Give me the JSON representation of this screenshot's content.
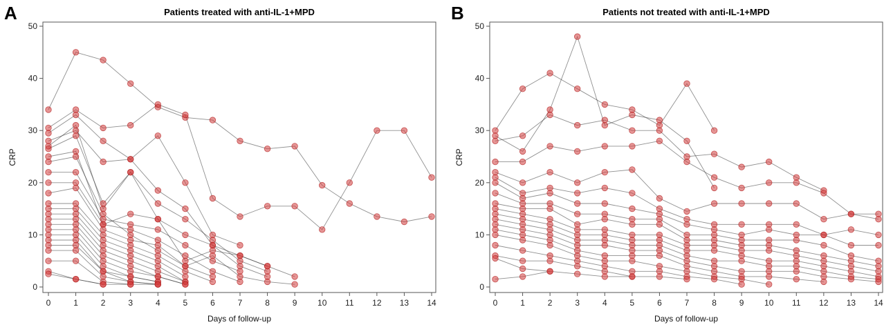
{
  "chart_data": [
    {
      "type": "line",
      "panel": "A",
      "title": "Patients treated with anti-IL-1+MPD",
      "xlabel": "Days of follow-up",
      "ylabel": "CRP",
      "xlim": [
        0,
        14
      ],
      "ylim": [
        0,
        50
      ],
      "x_ticks": [
        0,
        1,
        2,
        3,
        4,
        5,
        6,
        7,
        8,
        9,
        10,
        11,
        12,
        13,
        14
      ],
      "y_ticks": [
        0,
        10,
        20,
        30,
        40,
        50
      ],
      "grid": false,
      "series": [
        {
          "x": [
            0,
            1,
            2,
            3,
            4,
            5,
            6,
            7,
            8,
            9,
            10,
            11,
            12,
            13,
            14
          ],
          "y": [
            34,
            45,
            43.5,
            39,
            34.5,
            32.5,
            32,
            28,
            26.5,
            27,
            19.5,
            16,
            13.5,
            12.5,
            13.5
          ]
        },
        {
          "x": [
            0,
            1,
            2,
            3,
            4,
            5,
            6,
            7,
            8,
            9,
            10,
            11,
            12,
            13,
            14
          ],
          "y": [
            30.5,
            34,
            30.5,
            31,
            35,
            33,
            17,
            13.5,
            15.5,
            15.5,
            11,
            20,
            30,
            30,
            21
          ]
        },
        {
          "x": [
            0,
            1,
            2,
            3,
            4,
            5,
            6,
            7
          ],
          "y": [
            29.5,
            33,
            28,
            24.5,
            29,
            20,
            10,
            8
          ]
        },
        {
          "x": [
            0,
            1,
            2,
            3,
            4,
            5,
            6,
            7,
            8
          ],
          "y": [
            28,
            30,
            24,
            24.5,
            18.5,
            15,
            8,
            6,
            4
          ]
        },
        {
          "x": [
            0,
            1,
            2,
            3,
            4,
            5,
            6,
            7,
            8
          ],
          "y": [
            27,
            31,
            15,
            22,
            16,
            13,
            9,
            5,
            3
          ]
        },
        {
          "x": [
            0,
            1,
            2,
            3,
            4,
            5,
            6,
            7,
            8
          ],
          "y": [
            26.5,
            29,
            16,
            22,
            13,
            10,
            8,
            4,
            2
          ]
        },
        {
          "x": [
            0,
            1,
            2,
            3,
            4,
            5,
            6,
            7,
            8,
            9
          ],
          "y": [
            25,
            26,
            12,
            14,
            13,
            5,
            7,
            6,
            4,
            2
          ]
        },
        {
          "x": [
            0,
            1,
            2,
            3,
            4,
            5,
            6,
            7,
            8,
            9
          ],
          "y": [
            24,
            25,
            14,
            10,
            7,
            4,
            6,
            2,
            1,
            0.5
          ]
        },
        {
          "x": [
            0,
            1,
            2,
            3,
            4,
            5,
            6,
            7
          ],
          "y": [
            22,
            22,
            13,
            12,
            11,
            8,
            5,
            3
          ]
        },
        {
          "x": [
            0,
            1,
            2,
            3,
            4,
            5,
            6,
            7
          ],
          "y": [
            20,
            20,
            12,
            11,
            9,
            6,
            3,
            1
          ]
        },
        {
          "x": [
            0,
            1,
            2,
            3,
            4,
            5,
            6
          ],
          "y": [
            18,
            19,
            11,
            9,
            8,
            4,
            2
          ]
        },
        {
          "x": [
            0,
            1,
            2,
            3,
            4,
            5,
            6
          ],
          "y": [
            16,
            16,
            10,
            8,
            6,
            3,
            1
          ]
        },
        {
          "x": [
            0,
            1,
            2,
            3,
            4,
            5
          ],
          "y": [
            15,
            15,
            9,
            7,
            5,
            2
          ]
        },
        {
          "x": [
            0,
            1,
            2,
            3,
            4,
            5
          ],
          "y": [
            14,
            14,
            8,
            6,
            4,
            1
          ]
        },
        {
          "x": [
            0,
            1,
            2,
            3,
            4,
            5
          ],
          "y": [
            13,
            13,
            7,
            5,
            3,
            1
          ]
        },
        {
          "x": [
            0,
            1,
            2,
            3,
            4,
            5
          ],
          "y": [
            12,
            12,
            6,
            4,
            2,
            0.5
          ]
        },
        {
          "x": [
            0,
            1,
            2,
            3,
            4,
            5
          ],
          "y": [
            11,
            11,
            5,
            3,
            2,
            0.5
          ]
        },
        {
          "x": [
            0,
            1,
            2,
            3,
            4
          ],
          "y": [
            10,
            10,
            4,
            2,
            1
          ]
        },
        {
          "x": [
            0,
            1,
            2,
            3,
            4
          ],
          "y": [
            9,
            9,
            3,
            2,
            1
          ]
        },
        {
          "x": [
            0,
            1,
            2,
            3,
            4
          ],
          "y": [
            8,
            8,
            3,
            1,
            0.5
          ]
        },
        {
          "x": [
            0,
            1,
            2,
            3,
            4
          ],
          "y": [
            7,
            7,
            2,
            1,
            0.5
          ]
        },
        {
          "x": [
            0,
            1,
            2,
            3,
            4
          ],
          "y": [
            5,
            5,
            1,
            0.5,
            0.5
          ]
        },
        {
          "x": [
            0,
            1,
            2,
            3
          ],
          "y": [
            3,
            1.5,
            0.5,
            0.5
          ]
        },
        {
          "x": [
            0,
            1,
            2
          ],
          "y": [
            2.5,
            1.5,
            0.5
          ]
        }
      ]
    },
    {
      "type": "line",
      "panel": "B",
      "title": "Patients not treated with anti-IL-1+MPD",
      "xlabel": "Days of follow-up",
      "ylabel": "CRP",
      "xlim": [
        0,
        14
      ],
      "ylim": [
        0,
        50
      ],
      "x_ticks": [
        0,
        1,
        2,
        3,
        4,
        5,
        6,
        7,
        8,
        9,
        10,
        11,
        12,
        13,
        14
      ],
      "y_ticks": [
        0,
        10,
        20,
        30,
        40,
        50
      ],
      "grid": false,
      "series": [
        {
          "x": [
            0,
            1,
            2,
            3,
            4,
            5,
            6,
            7,
            8
          ],
          "y": [
            30,
            38,
            41,
            38,
            35,
            34,
            31,
            39,
            30
          ]
        },
        {
          "x": [
            0,
            1,
            2,
            3,
            4,
            5,
            6,
            7,
            8
          ],
          "y": [
            29,
            26,
            34,
            48,
            31,
            33,
            32,
            28,
            19
          ]
        },
        {
          "x": [
            0,
            1,
            2,
            3,
            4,
            5,
            6,
            7,
            8,
            9,
            10,
            11,
            12
          ],
          "y": [
            28,
            29,
            33,
            31,
            32,
            30,
            30,
            25,
            25.5,
            23,
            24,
            21,
            18.5
          ]
        },
        {
          "x": [
            0,
            1,
            2,
            3,
            4,
            5,
            6,
            7,
            8,
            9,
            10,
            11,
            12,
            13,
            14
          ],
          "y": [
            24,
            24,
            27,
            26,
            27,
            27,
            28,
            24,
            21,
            19,
            20,
            20,
            18,
            14,
            13
          ]
        },
        {
          "x": [
            0,
            1,
            2,
            3,
            4,
            5,
            6,
            7,
            8,
            9,
            10,
            11,
            12,
            13,
            14
          ],
          "y": [
            22,
            20,
            22,
            20,
            22,
            22.5,
            17,
            14.5,
            16,
            16,
            16,
            16,
            13,
            14,
            14
          ]
        },
        {
          "x": [
            0,
            1,
            2,
            3,
            4,
            5,
            6,
            7,
            8,
            9,
            10,
            11,
            12,
            13,
            14
          ],
          "y": [
            21,
            18,
            19,
            18,
            19,
            18,
            15,
            13,
            12,
            12,
            12,
            12,
            10,
            11,
            10
          ]
        },
        {
          "x": [
            0,
            1,
            2,
            3,
            4,
            5,
            6,
            7,
            8,
            9,
            10,
            11,
            12,
            13,
            14
          ],
          "y": [
            20,
            17,
            18,
            16,
            16,
            15,
            14,
            12,
            11,
            10,
            11,
            10,
            10,
            8,
            8
          ]
        },
        {
          "x": [
            0,
            1,
            2,
            3,
            4,
            5,
            6,
            7,
            8,
            9,
            10,
            11,
            12,
            13,
            14
          ],
          "y": [
            18,
            16,
            16,
            14,
            14,
            13,
            13,
            10,
            10,
            9,
            9,
            9,
            8,
            6,
            5
          ]
        },
        {
          "x": [
            0,
            1,
            2,
            3,
            4,
            5,
            6,
            7,
            8,
            9,
            10,
            11,
            12,
            13,
            14
          ],
          "y": [
            16,
            15,
            15,
            12,
            13,
            12,
            12,
            9,
            9,
            8,
            8,
            7,
            6,
            5,
            4
          ]
        },
        {
          "x": [
            0,
            1,
            2,
            3,
            4,
            5,
            6,
            7,
            8,
            9,
            10,
            11,
            12,
            13,
            14
          ],
          "y": [
            15,
            14,
            13,
            11,
            11,
            10,
            10,
            8,
            8,
            7,
            7,
            6,
            5,
            4,
            3
          ]
        },
        {
          "x": [
            0,
            1,
            2,
            3,
            4,
            5,
            6,
            7,
            8,
            9,
            10,
            11,
            12,
            13,
            14
          ],
          "y": [
            14,
            13,
            12,
            10,
            10,
            9,
            9,
            7,
            7,
            6,
            5,
            5,
            4,
            3,
            2
          ]
        },
        {
          "x": [
            0,
            1,
            2,
            3,
            4,
            5,
            6,
            7,
            8,
            9,
            10,
            11,
            12,
            13,
            14
          ],
          "y": [
            13,
            12,
            11,
            9,
            9,
            8,
            8,
            6,
            5,
            5,
            4,
            4,
            3,
            2,
            1.5
          ]
        },
        {
          "x": [
            0,
            1,
            2,
            3,
            4,
            5,
            6,
            7,
            8,
            9,
            10,
            11,
            12,
            13,
            14
          ],
          "y": [
            12,
            11,
            10,
            8,
            8,
            7,
            7,
            5,
            4,
            3,
            3,
            3,
            2,
            1.5,
            1
          ]
        },
        {
          "x": [
            0,
            1,
            2,
            3,
            4,
            5,
            6,
            7,
            8,
            9,
            10,
            11,
            12
          ],
          "y": [
            11,
            10,
            9,
            7,
            6,
            6,
            6,
            4,
            3,
            2,
            2,
            1.5,
            1
          ]
        },
        {
          "x": [
            0,
            1,
            2,
            3,
            4,
            5,
            6,
            7,
            8,
            9,
            10
          ],
          "y": [
            10,
            9,
            8,
            6,
            5,
            5,
            4,
            3,
            2,
            1.5,
            0.5
          ]
        },
        {
          "x": [
            0,
            1,
            2,
            3,
            4,
            5,
            6,
            7,
            8,
            9
          ],
          "y": [
            8,
            7,
            6,
            5,
            4,
            3,
            3,
            2,
            1.5,
            0.5
          ]
        },
        {
          "x": [
            0,
            1,
            2,
            3,
            4,
            5,
            6,
            7
          ],
          "y": [
            6,
            5,
            5,
            4,
            3,
            2,
            2,
            1.5
          ]
        },
        {
          "x": [
            0,
            1,
            2,
            3,
            4,
            5
          ],
          "y": [
            5.5,
            3.5,
            3,
            2.5,
            2,
            2
          ]
        },
        {
          "x": [
            0,
            1,
            2
          ],
          "y": [
            1.5,
            2,
            3
          ]
        }
      ]
    }
  ]
}
